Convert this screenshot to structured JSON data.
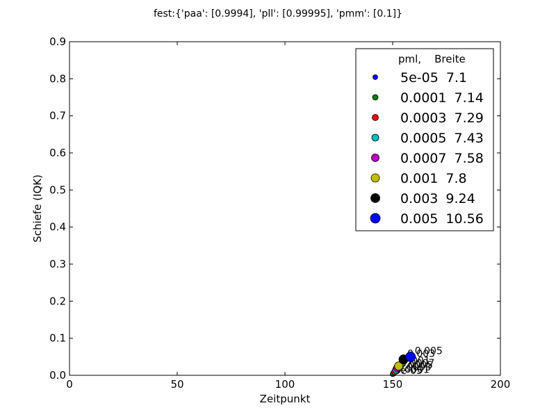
{
  "chart_data": {
    "type": "scatter",
    "title": "fest:{'paa': [0.9994], 'pll': [0.99995], 'pmm': [0.1]}",
    "xlabel": "Zeitpunkt",
    "ylabel": "Schiefe (IQK)",
    "xlim": [
      0,
      200
    ],
    "ylim": [
      0,
      0.9
    ],
    "xticks": [
      "0",
      "50",
      "100",
      "150",
      "200"
    ],
    "yticks": [
      "0.0",
      "0.1",
      "0.2",
      "0.3",
      "0.4",
      "0.5",
      "0.6",
      "0.7",
      "0.8",
      "0.9"
    ],
    "grid": false,
    "legend_position": "top-right",
    "legend_header": "pml,    Breite",
    "series": [
      {
        "pml": "5e-05",
        "breite": "7.1",
        "color": "#0000ff",
        "x": 150.0,
        "y": 0.003,
        "label": "5e-05"
      },
      {
        "pml": "0.0001",
        "breite": "7.14",
        "color": "#008000",
        "x": 150.3,
        "y": 0.005,
        "label": "0.0001"
      },
      {
        "pml": "0.0003",
        "breite": "7.29",
        "color": "#ff0000",
        "x": 151.0,
        "y": 0.01,
        "label": "0.0003"
      },
      {
        "pml": "0.0005",
        "breite": "7.43",
        "color": "#00bfbf",
        "x": 151.6,
        "y": 0.015,
        "label": "0.0005"
      },
      {
        "pml": "0.0007",
        "breite": "7.58",
        "color": "#bf00bf",
        "x": 152.2,
        "y": 0.02,
        "label": "0.0007"
      },
      {
        "pml": "0.001",
        "breite": "7.8",
        "color": "#bfbf00",
        "x": 152.8,
        "y": 0.025,
        "label": "0.001"
      },
      {
        "pml": "0.003",
        "breite": "9.24",
        "color": "#000000",
        "x": 155.0,
        "y": 0.043,
        "label": "0.003"
      },
      {
        "pml": "0.005",
        "breite": "10.56",
        "color": "#0000ff",
        "x": 158.3,
        "y": 0.05,
        "label": "0.005"
      }
    ]
  }
}
